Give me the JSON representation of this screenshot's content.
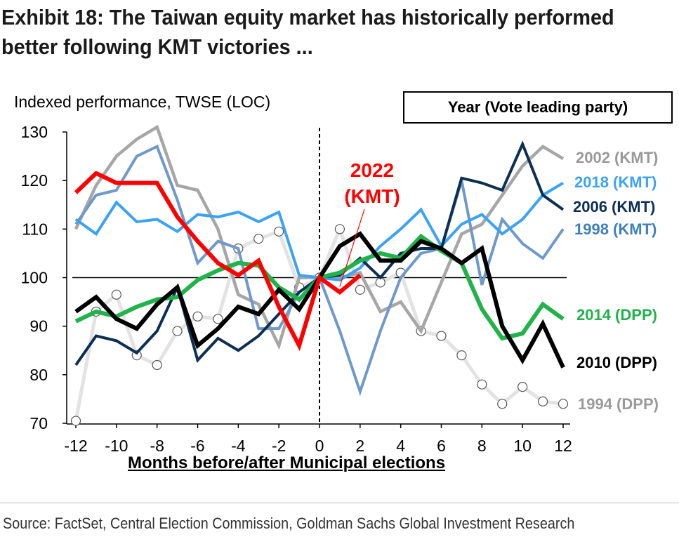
{
  "title": "Exhibit 18: The Taiwan equity market has historically performed better following KMT victories ...",
  "source": "Source: FactSet, Central Election Commission, Goldman Sachs Global Investment Research",
  "chart_data": {
    "type": "line",
    "ylabel": "Indexed performance, TWSE (LOC)",
    "xlabel": "Months before/after Municipal elections",
    "legend_title": "Year (Vote leading party)",
    "xlim": [
      -12,
      12
    ],
    "ylim": [
      70,
      130
    ],
    "x_ticks": [
      "-12",
      "-10",
      "-8",
      "-6",
      "-4",
      "-2",
      "0",
      "2",
      "4",
      "6",
      "8",
      "10",
      "12"
    ],
    "y_ticks": [
      "70",
      "80",
      "90",
      "100",
      "110",
      "120",
      "130"
    ],
    "reference_line_y": 100,
    "event_line_x": 0,
    "annotation": {
      "text": [
        "2022",
        "(KMT)"
      ],
      "color": "#ff0000",
      "points_to": [
        1,
        97
      ]
    },
    "series": [
      {
        "name": "1994 (DPP)",
        "color": "#e3e3e3",
        "markers": "open-circle",
        "x": [
          -12,
          -11,
          -10,
          -9,
          -8,
          -7,
          -6,
          -5,
          -4,
          -3,
          -2,
          -1,
          0,
          1,
          2,
          3,
          4,
          5,
          6,
          7,
          8,
          9,
          10,
          11,
          12
        ],
        "y": [
          70.5,
          93,
          96.5,
          84,
          82,
          89,
          92,
          91.5,
          106,
          108,
          109.5,
          98,
          100,
          110,
          97.5,
          99,
          101,
          89,
          88,
          84,
          78,
          74,
          77.5,
          74.5,
          74
        ]
      },
      {
        "name": "2002 (KMT)",
        "color": "#a6a6a6",
        "x": [
          -12,
          -11,
          -10,
          -9,
          -8,
          -7,
          -6,
          -5,
          -4,
          -3,
          -2,
          -1,
          0,
          1,
          2,
          3,
          4,
          5,
          6,
          7,
          8,
          9,
          10,
          11,
          12
        ],
        "y": [
          110,
          119,
          125,
          128.5,
          131,
          119,
          118,
          110,
          96.5,
          94.5,
          86,
          100,
          100,
          100,
          101,
          93,
          95,
          89,
          99,
          109,
          111,
          117,
          123,
          127,
          124.5
        ]
      },
      {
        "name": "1998 (KMT)",
        "color": "#6f99c9",
        "x": [
          -12,
          -11,
          -10,
          -9,
          -8,
          -7,
          -6,
          -5,
          -4,
          -3,
          -2,
          -1,
          0,
          1,
          2,
          3,
          4,
          5,
          6,
          7,
          8,
          9,
          10,
          11,
          12
        ],
        "y": [
          111,
          117,
          118,
          125,
          127,
          116,
          103,
          107.5,
          106,
          89.5,
          89.5,
          97,
          100,
          89,
          76.5,
          89,
          100,
          105,
          106,
          120,
          98.5,
          112,
          107,
          104,
          110
        ]
      },
      {
        "name": "2018 (KMT)",
        "color": "#3ba3f2",
        "x": [
          -12,
          -11,
          -10,
          -9,
          -8,
          -7,
          -6,
          -5,
          -4,
          -3,
          -2,
          -1,
          0,
          1,
          2,
          3,
          4,
          5,
          6,
          7,
          8,
          9,
          10,
          11,
          12
        ],
        "y": [
          112,
          109,
          115.5,
          111.5,
          112,
          109.5,
          113,
          112.5,
          113.5,
          111.5,
          113.5,
          100.5,
          100,
          99.5,
          102,
          106.5,
          110,
          114,
          106.5,
          111,
          113,
          109,
          112,
          117,
          119.5
        ]
      },
      {
        "name": "2006 (KMT)",
        "color": "#0d2f52",
        "x": [
          -12,
          -11,
          -10,
          -9,
          -8,
          -7,
          -6,
          -5,
          -4,
          -3,
          -2,
          -1,
          0,
          1,
          2,
          3,
          4,
          5,
          6,
          7,
          8,
          9,
          10,
          11,
          12
        ],
        "y": [
          82,
          88,
          87,
          84.5,
          89,
          98,
          83,
          87.5,
          85,
          88,
          92.5,
          97,
          100,
          100.5,
          104,
          100,
          105,
          106,
          106,
          120.5,
          119.5,
          118,
          127.5,
          117,
          114
        ]
      },
      {
        "name": "2014 (DPP)",
        "color": "#1fb34a",
        "x": [
          -12,
          -11,
          -10,
          -9,
          -8,
          -7,
          -6,
          -5,
          -4,
          -3,
          -2,
          -1,
          0,
          1,
          2,
          3,
          4,
          5,
          6,
          7,
          8,
          9,
          10,
          11,
          12
        ],
        "y": [
          91,
          93,
          92,
          94,
          95.5,
          96,
          99.5,
          101.5,
          103,
          102.5,
          98,
          95.5,
          100,
          101,
          103.5,
          105,
          104,
          108.5,
          105.5,
          103,
          93.5,
          87.5,
          88.5,
          94.5,
          91.5
        ]
      },
      {
        "name": "2010 (DPP)",
        "color": "#000000",
        "x": [
          -12,
          -11,
          -10,
          -9,
          -8,
          -7,
          -6,
          -5,
          -4,
          -3,
          -2,
          -1,
          0,
          1,
          2,
          3,
          4,
          5,
          6,
          7,
          8,
          9,
          10,
          11,
          12
        ],
        "y": [
          93,
          96,
          91.5,
          89.5,
          94.5,
          98,
          86,
          89.5,
          94,
          92.5,
          97.5,
          93.5,
          100,
          106.5,
          109,
          103.5,
          103.5,
          107.5,
          106,
          103,
          106,
          90,
          83,
          90.5,
          81.5
        ]
      },
      {
        "name": "2022 (KMT)",
        "color": "#ff0000",
        "x": [
          -12,
          -11,
          -10,
          -9,
          -8,
          -7,
          -6,
          -5,
          -4,
          -3,
          -2,
          -1,
          0,
          1,
          2
        ],
        "y": [
          117.5,
          121.5,
          119.5,
          119.5,
          119.5,
          112.5,
          107.5,
          103,
          100.5,
          103.5,
          94,
          86,
          100,
          97,
          100.5
        ]
      }
    ]
  }
}
